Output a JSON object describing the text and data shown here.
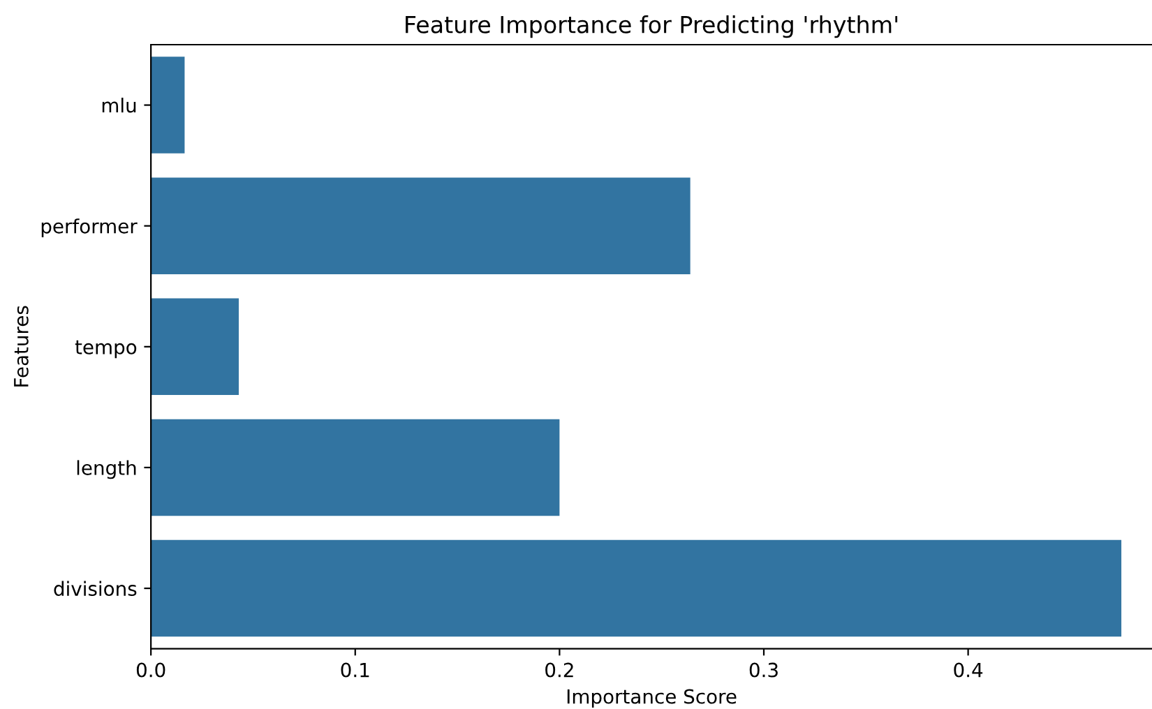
{
  "chart_data": {
    "type": "bar",
    "orientation": "horizontal",
    "title": "Feature Importance for Predicting 'rhythm'",
    "xlabel": "Importance Score",
    "ylabel": "Features",
    "categories": [
      "mlu",
      "performer",
      "tempo",
      "length",
      "divisions"
    ],
    "values": [
      0.0165,
      0.264,
      0.043,
      0.2,
      0.475
    ],
    "color": "#3274a1",
    "xlim": [
      0,
      0.49
    ],
    "xticks": [
      {
        "value": 0,
        "label": "0.0"
      },
      0.1,
      0.2,
      0.3,
      0.4
    ],
    "grid": false,
    "legend": false
  }
}
